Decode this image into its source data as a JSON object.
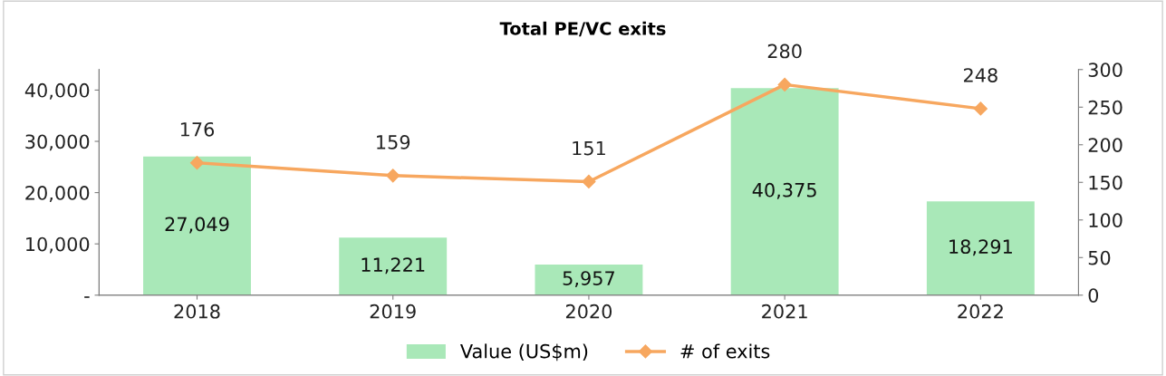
{
  "chart_data": {
    "type": "bar",
    "title": "Total PE/VC exits",
    "categories": [
      "2018",
      "2019",
      "2020",
      "2021",
      "2022"
    ],
    "series": [
      {
        "name": "Value (US$m)",
        "color": "#a9e8b8",
        "values": [
          27049,
          11221,
          5957,
          40375,
          18291
        ],
        "value_labels": [
          "27,049",
          "11,221",
          "5,957",
          "40,375",
          "18,291"
        ]
      },
      {
        "name": "# of exits",
        "type": "line",
        "axis": "y2",
        "color": "#f7a75f",
        "marker": "diamond",
        "values": [
          176,
          159,
          151,
          280,
          248
        ]
      }
    ],
    "ylim": [
      0,
      44000
    ],
    "yticks": [
      {
        "value": 0,
        "label": "-"
      },
      {
        "value": 10000,
        "label": "10,000"
      },
      {
        "value": 20000,
        "label": "20,000"
      },
      {
        "value": 30000,
        "label": "30,000"
      },
      {
        "value": 40000,
        "label": "40,000"
      }
    ],
    "y2lim": [
      0,
      300
    ],
    "y2ticks": [
      0,
      50,
      100,
      150,
      200,
      250,
      300
    ],
    "data_labels": true,
    "grid": false,
    "legend": "bottom"
  }
}
